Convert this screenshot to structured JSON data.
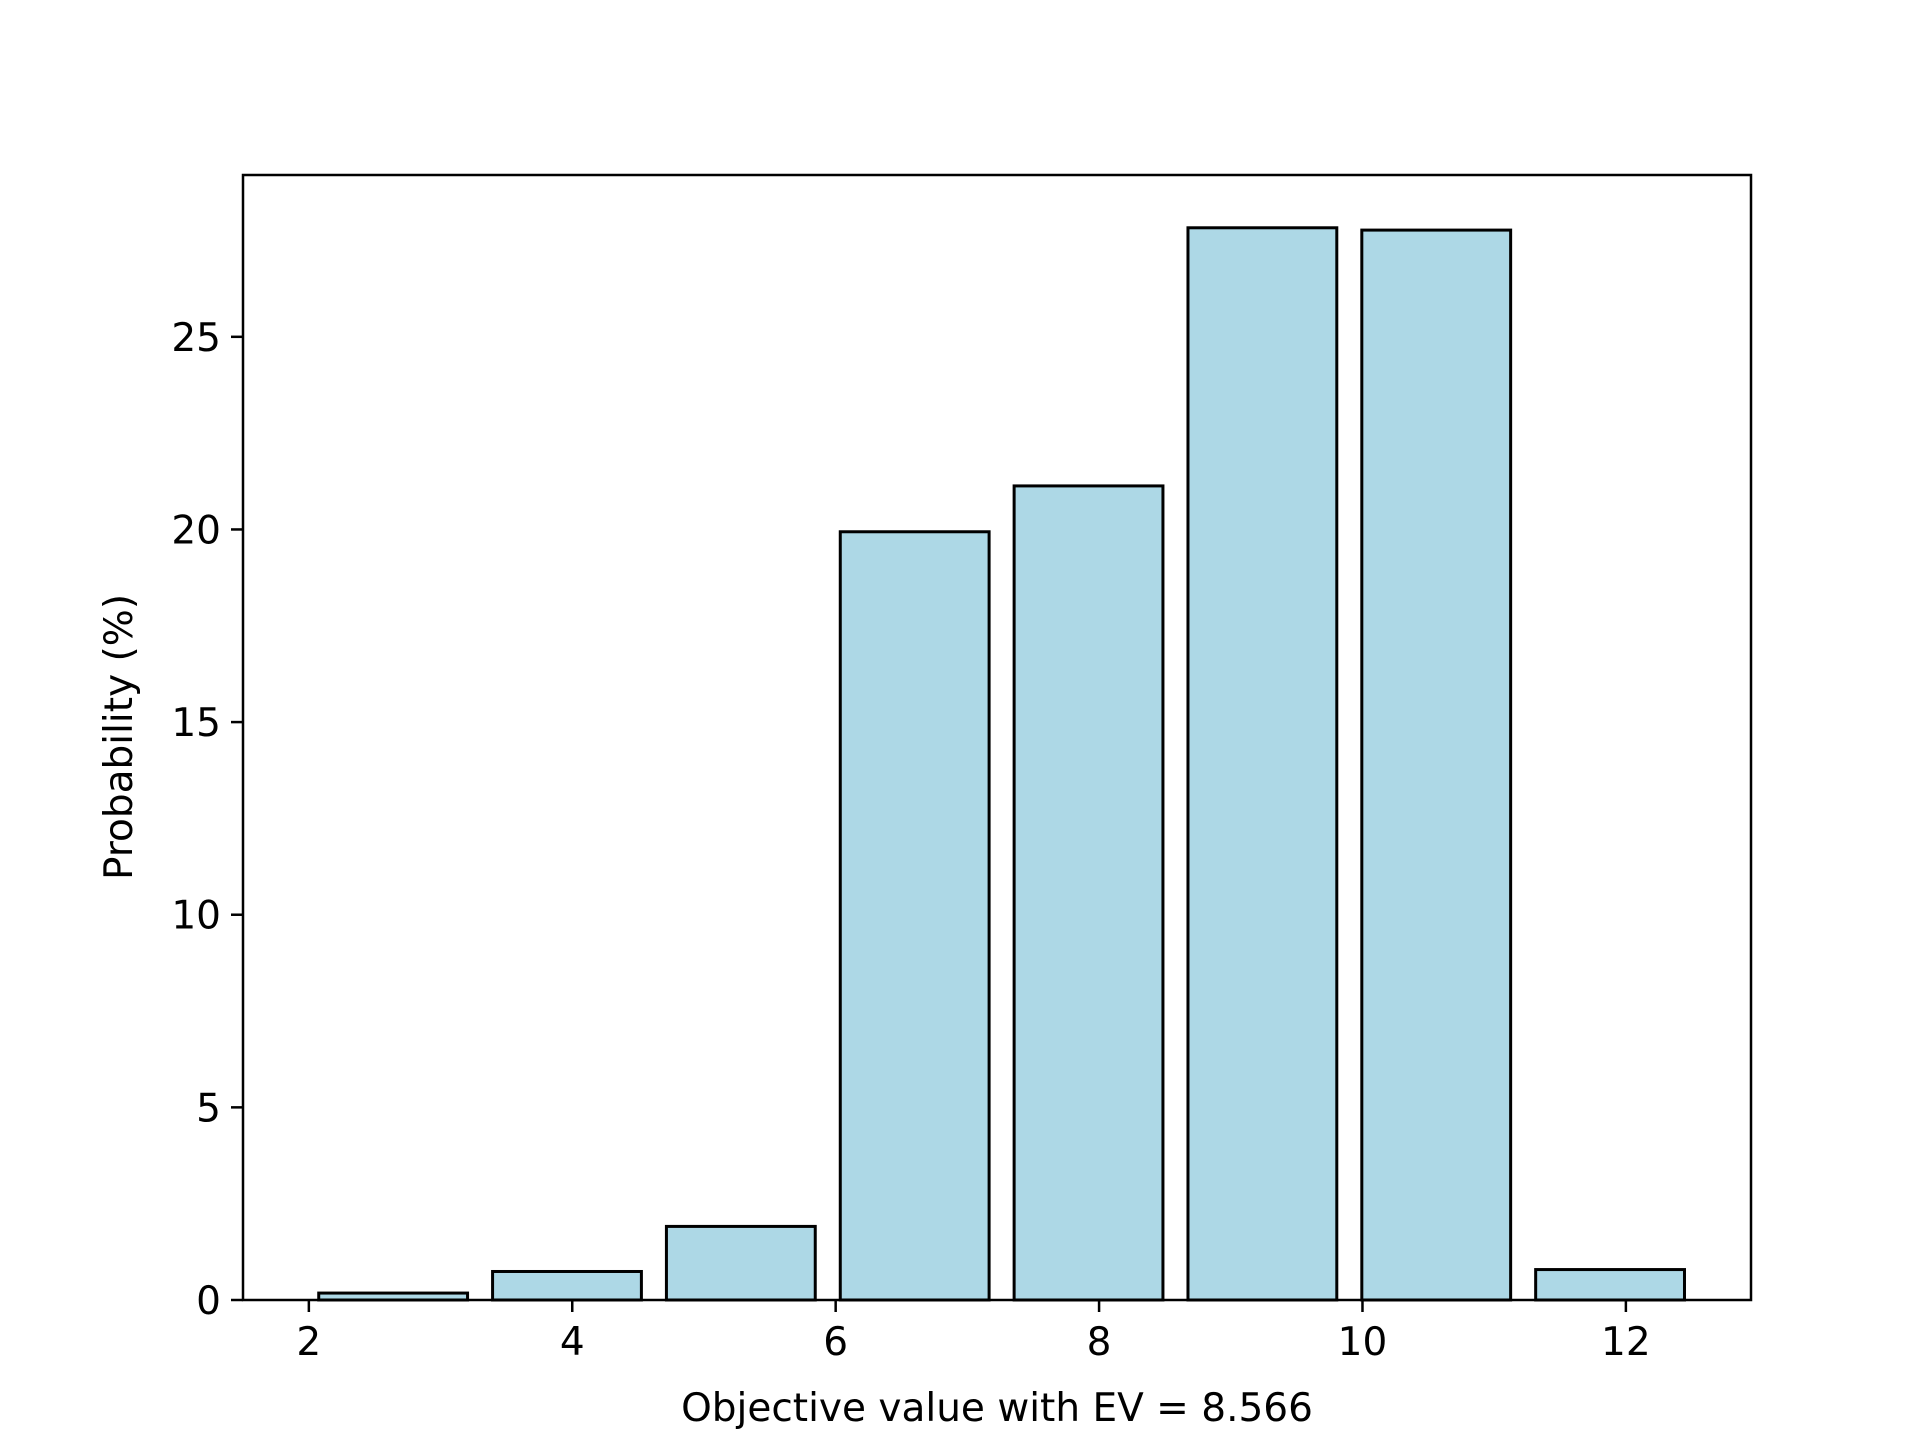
{
  "chart_data": {
    "type": "bar",
    "title": "",
    "xlabel": "Objective value with EV = 8.566",
    "ylabel": "Probability (%)",
    "bar_color": "#add8e6",
    "edge_color": "#000000",
    "xlim": [
      1.5,
      12.95
    ],
    "ylim": [
      0,
      29.2
    ],
    "xticks": [
      2,
      4,
      6,
      8,
      10,
      12
    ],
    "yticks": [
      0,
      5,
      10,
      15,
      20,
      25
    ],
    "bar_width": 1.13,
    "bars": [
      {
        "x": 2.64,
        "value": 0.18
      },
      {
        "x": 3.96,
        "value": 0.74
      },
      {
        "x": 5.28,
        "value": 1.91
      },
      {
        "x": 6.6,
        "value": 19.94
      },
      {
        "x": 7.92,
        "value": 21.13
      },
      {
        "x": 9.24,
        "value": 27.83
      },
      {
        "x": 10.56,
        "value": 27.77
      },
      {
        "x": 11.88,
        "value": 0.79
      }
    ],
    "grid": false,
    "legend": "none"
  }
}
